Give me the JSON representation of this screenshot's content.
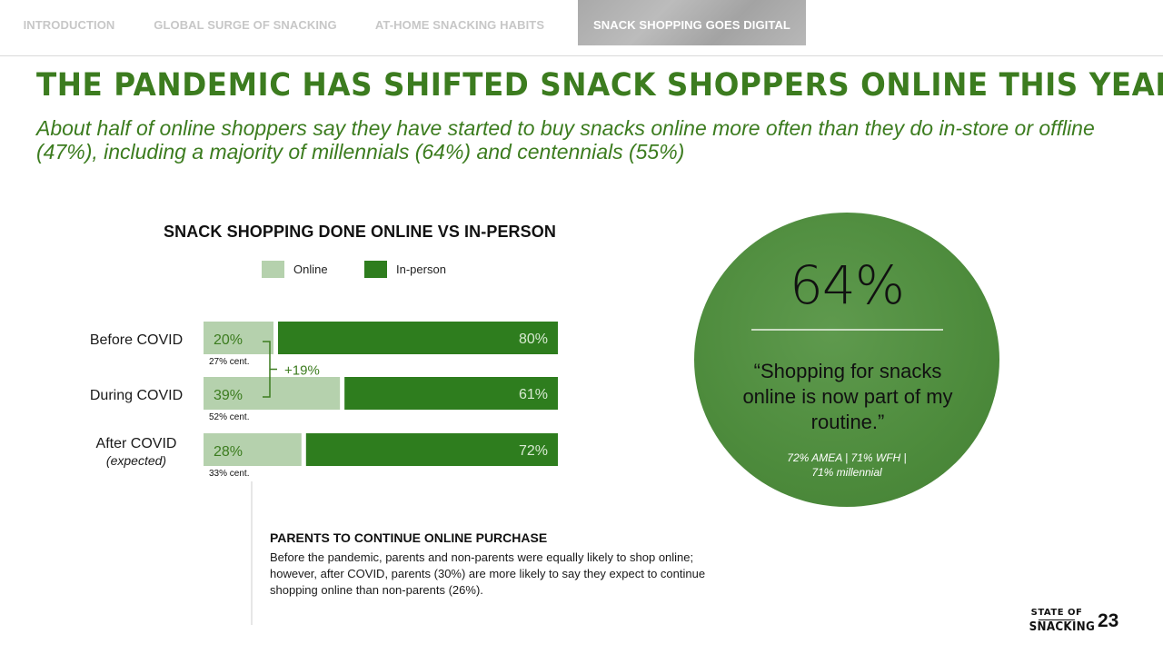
{
  "nav": {
    "tabs": [
      {
        "label": "INTRODUCTION",
        "active": false
      },
      {
        "label": "GLOBAL SURGE OF SNACKING",
        "active": false
      },
      {
        "label": "AT-HOME SNACKING HABITS",
        "active": false
      },
      {
        "label": "SNACK SHOPPING GOES DIGITAL",
        "active": true
      }
    ]
  },
  "headline": "THE PANDEMIC HAS SHIFTED SNACK SHOPPERS ONLINE THIS YEAR",
  "subhead": "About half of online shoppers say they have started to buy snacks online more often than they do in-store or offline (47%), including a majority of millennials (64%) and centennials (55%)",
  "colors": {
    "brand_green": "#3c7c1f",
    "online": "#b5d1ad",
    "in_person": "#2e7d1e",
    "circle": "#4d8b3c"
  },
  "chart_data": {
    "type": "bar",
    "orientation": "horizontal",
    "stacked": true,
    "title": "SNACK SHOPPING DONE ONLINE VS IN-PERSON",
    "categories": [
      "Before COVID",
      "During COVID",
      "After COVID"
    ],
    "category_sublabels": [
      "",
      "",
      "(expected)"
    ],
    "series": [
      {
        "name": "Online",
        "values": [
          20,
          39,
          28
        ],
        "labels": [
          "20%",
          "39%",
          "28%"
        ],
        "color": "#b5d1ad"
      },
      {
        "name": "In-person",
        "values": [
          80,
          61,
          72
        ],
        "labels": [
          "80%",
          "61%",
          "72%"
        ],
        "color": "#2e7d1e"
      }
    ],
    "centennial_notes": [
      "27% cent.",
      "52% cent.",
      "33% cent."
    ],
    "annotation": "+19%",
    "xlim": [
      0,
      100
    ],
    "legend_position": "top"
  },
  "callout": {
    "stat": "64%",
    "quote": "“Shopping for snacks online is now part of my routine.”",
    "note_line1": "72% AMEA | 71% WFH |",
    "note_line2": "71% millennial"
  },
  "parents_note": {
    "title": "PARENTS TO CONTINUE ONLINE PURCHASE",
    "body": "Before the pandemic, parents and non-parents were equally likely to shop online; however, after COVID, parents (30%) are more likely to say they expect to continue shopping online than non-parents (26%)."
  },
  "footer": {
    "logo_top": "STATE OF",
    "logo_bottom": "SNACKING",
    "page_number": "23"
  }
}
